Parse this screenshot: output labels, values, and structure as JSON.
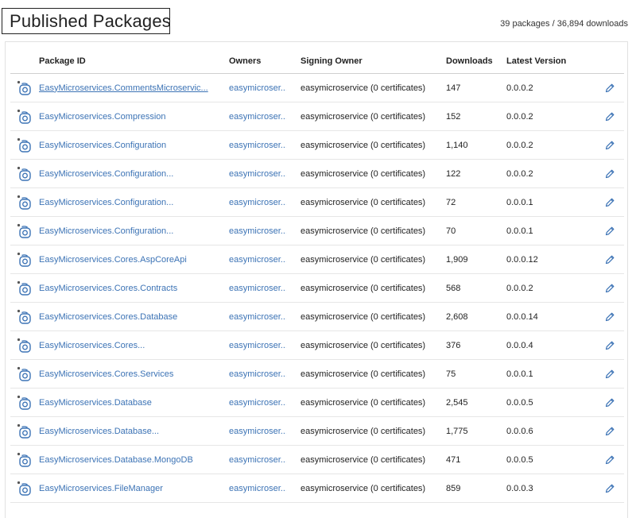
{
  "header": {
    "title": "Published Packages",
    "summary": "39 packages / 36,894 downloads"
  },
  "table": {
    "columns": {
      "package_id": "Package ID",
      "owners": "Owners",
      "signing_owner": "Signing Owner",
      "downloads": "Downloads",
      "latest_version": "Latest Version"
    },
    "rows": [
      {
        "package_id": "EasyMicroservices.CommentsMicroservic...",
        "owner": "easymicroser...",
        "signing_owner": "easymicroservice (0 certificates)",
        "downloads": "147",
        "version": "0.0.0.2"
      },
      {
        "package_id": "EasyMicroservices.Compression",
        "owner": "easymicroser...",
        "signing_owner": "easymicroservice (0 certificates)",
        "downloads": "152",
        "version": "0.0.0.2"
      },
      {
        "package_id": "EasyMicroservices.Configuration",
        "owner": "easymicroser...",
        "signing_owner": "easymicroservice (0 certificates)",
        "downloads": "1,140",
        "version": "0.0.0.2"
      },
      {
        "package_id": "EasyMicroservices.Configuration...",
        "owner": "easymicroser...",
        "signing_owner": "easymicroservice (0 certificates)",
        "downloads": "122",
        "version": "0.0.0.2"
      },
      {
        "package_id": "EasyMicroservices.Configuration...",
        "owner": "easymicroser...",
        "signing_owner": "easymicroservice (0 certificates)",
        "downloads": "72",
        "version": "0.0.0.1"
      },
      {
        "package_id": "EasyMicroservices.Configuration...",
        "owner": "easymicroser...",
        "signing_owner": "easymicroservice (0 certificates)",
        "downloads": "70",
        "version": "0.0.0.1"
      },
      {
        "package_id": "EasyMicroservices.Cores.AspCoreApi",
        "owner": "easymicroser...",
        "signing_owner": "easymicroservice (0 certificates)",
        "downloads": "1,909",
        "version": "0.0.0.12"
      },
      {
        "package_id": "EasyMicroservices.Cores.Contracts",
        "owner": "easymicroser...",
        "signing_owner": "easymicroservice (0 certificates)",
        "downloads": "568",
        "version": "0.0.0.2"
      },
      {
        "package_id": "EasyMicroservices.Cores.Database",
        "owner": "easymicroser...",
        "signing_owner": "easymicroservice (0 certificates)",
        "downloads": "2,608",
        "version": "0.0.0.14"
      },
      {
        "package_id": "EasyMicroservices.Cores...",
        "owner": "easymicroser...",
        "signing_owner": "easymicroservice (0 certificates)",
        "downloads": "376",
        "version": "0.0.0.4"
      },
      {
        "package_id": "EasyMicroservices.Cores.Services",
        "owner": "easymicroser...",
        "signing_owner": "easymicroservice (0 certificates)",
        "downloads": "75",
        "version": "0.0.0.1"
      },
      {
        "package_id": "EasyMicroservices.Database",
        "owner": "easymicroser...",
        "signing_owner": "easymicroservice (0 certificates)",
        "downloads": "2,545",
        "version": "0.0.0.5"
      },
      {
        "package_id": "EasyMicroservices.Database...",
        "owner": "easymicroser...",
        "signing_owner": "easymicroservice (0 certificates)",
        "downloads": "1,775",
        "version": "0.0.0.6"
      },
      {
        "package_id": "EasyMicroservices.Database.MongoDB",
        "owner": "easymicroser...",
        "signing_owner": "easymicroservice (0 certificates)",
        "downloads": "471",
        "version": "0.0.0.5"
      },
      {
        "package_id": "EasyMicroservices.FileManager",
        "owner": "easymicroser...",
        "signing_owner": "easymicroservice (0 certificates)",
        "downloads": "859",
        "version": "0.0.0.3"
      }
    ]
  },
  "icons": {
    "collapse": "chevron-down-icon",
    "package": "package-icon",
    "edit": "pencil-icon"
  },
  "colors": {
    "link": "#3c73b5",
    "text": "#222222",
    "border": "#e1e1e1"
  }
}
